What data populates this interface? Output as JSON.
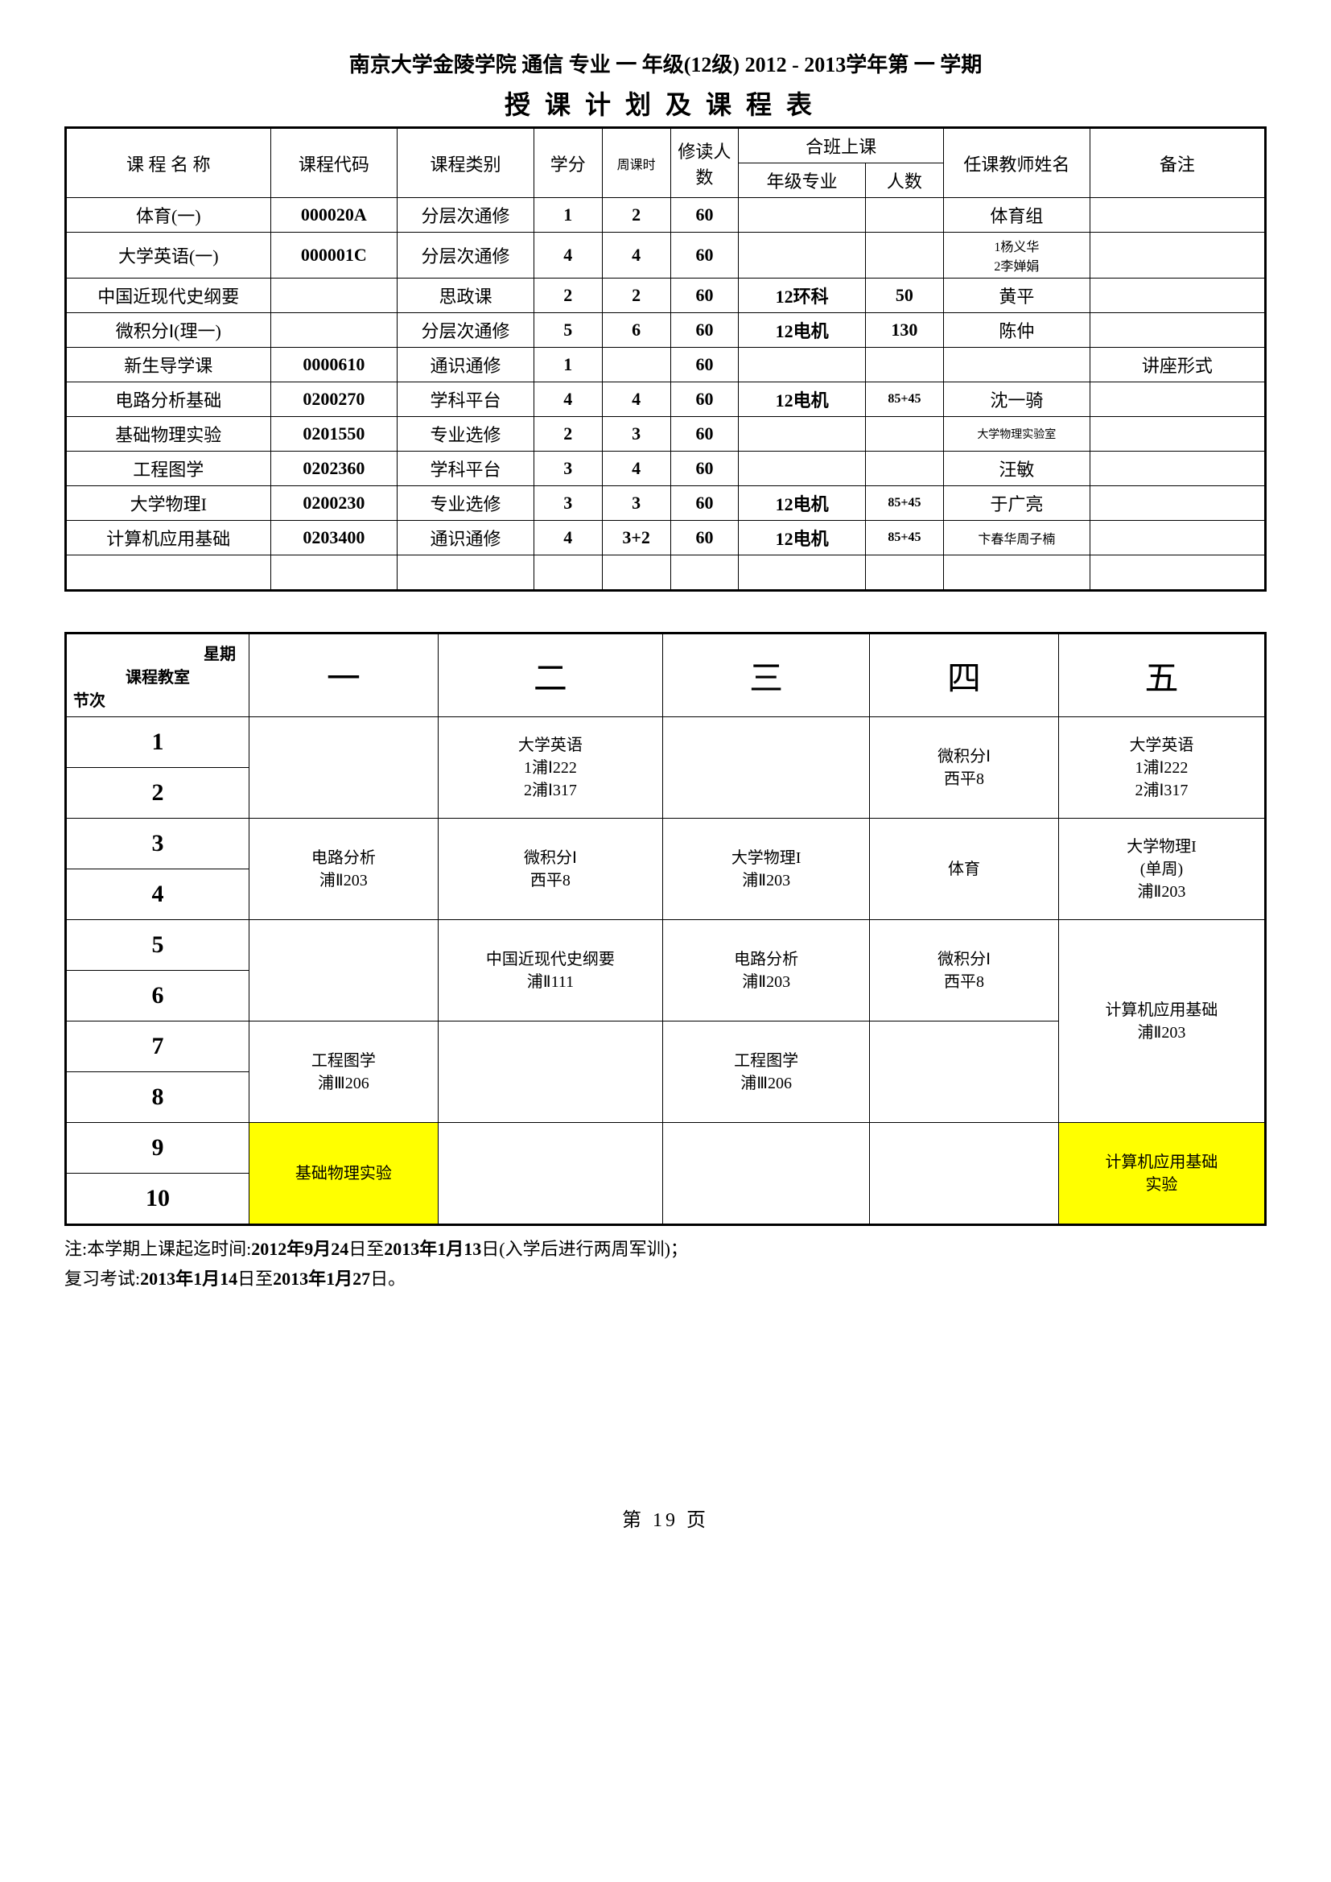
{
  "title": "南京大学金陵学院 通信 专业 一 年级(12级) 2012 - 2013学年第 一 学期",
  "subtitle": "授课计划及课程表",
  "course_headers": {
    "name": "课 程 名 称",
    "code": "课程代码",
    "category": "课程类别",
    "credits": "学分",
    "hours": "周课时",
    "students": "修读人数",
    "combined": "合班上课",
    "grade_major": "年级专业",
    "count": "人数",
    "teacher": "任课教师姓名",
    "remark": "备注"
  },
  "courses": [
    {
      "name": "体育(一)",
      "code": "000020A",
      "category": "分层次通修",
      "credits": "1",
      "hours": "2",
      "students": "60",
      "grade_major": "",
      "count": "",
      "teacher": "体育组",
      "remark": ""
    },
    {
      "name": "大学英语(一)",
      "code": "000001C",
      "category": "分层次通修",
      "credits": "4",
      "hours": "4",
      "students": "60",
      "grade_major": "",
      "count": "",
      "teacher": "1杨义华\n2李婵娟",
      "teacher_small": true,
      "remark": ""
    },
    {
      "name": "中国近现代史纲要",
      "code": "",
      "category": "思政课",
      "credits": "2",
      "hours": "2",
      "students": "60",
      "grade_major": "12环科",
      "count": "50",
      "teacher": "黄平",
      "remark": ""
    },
    {
      "name": "微积分Ⅰ(理一)",
      "code": "",
      "category": "分层次通修",
      "credits": "5",
      "hours": "6",
      "students": "60",
      "grade_major": "12电机",
      "count": "130",
      "teacher": "陈仲",
      "remark": ""
    },
    {
      "name": "新生导学课",
      "code": "0000610",
      "category": "通识通修",
      "credits": "1",
      "hours": "",
      "students": "60",
      "grade_major": "",
      "count": "",
      "teacher": "",
      "remark": "讲座形式"
    },
    {
      "name": "电路分析基础",
      "code": "0200270",
      "category": "学科平台",
      "credits": "4",
      "hours": "4",
      "students": "60",
      "grade_major": "12电机",
      "count": "85+45",
      "count_small": true,
      "teacher": "沈一骑",
      "remark": ""
    },
    {
      "name": "基础物理实验",
      "code": "0201550",
      "category": "专业选修",
      "credits": "2",
      "hours": "3",
      "students": "60",
      "grade_major": "",
      "count": "",
      "teacher": "大学物理实验室",
      "teacher_smaller": true,
      "remark": ""
    },
    {
      "name": "工程图学",
      "code": "0202360",
      "category": "学科平台",
      "credits": "3",
      "hours": "4",
      "students": "60",
      "grade_major": "",
      "count": "",
      "teacher": "汪敏",
      "remark": ""
    },
    {
      "name": "大学物理I",
      "code": "0200230",
      "category": "专业选修",
      "credits": "3",
      "hours": "3",
      "students": "60",
      "grade_major": "12电机",
      "count": "85+45",
      "count_small": true,
      "teacher": "于广亮",
      "remark": ""
    },
    {
      "name": "计算机应用基础",
      "code": "0203400",
      "category": "通识通修",
      "credits": "4",
      "hours": "3+2",
      "students": "60",
      "grade_major": "12电机",
      "count": "85+45",
      "count_small": true,
      "teacher": "卞春华周子楠",
      "teacher_small": true,
      "remark": ""
    }
  ],
  "corner_labels": {
    "weekday": "星期",
    "classroom": "课程教室",
    "period": "节次"
  },
  "days": [
    "一",
    "二",
    "三",
    "四",
    "五"
  ],
  "periods": [
    "1",
    "2",
    "3",
    "4",
    "5",
    "6",
    "7",
    "8",
    "9",
    "10"
  ],
  "schedule": {
    "p12": {
      "d1": "",
      "d2": "大学英语\n1浦Ⅰ222\n2浦Ⅰ317",
      "d3": "",
      "d4": "微积分Ⅰ\n西平8",
      "d5": "大学英语\n1浦Ⅰ222\n2浦Ⅰ317"
    },
    "p34": {
      "d1": "电路分析\n浦Ⅱ203",
      "d2": "微积分Ⅰ\n西平8",
      "d3": "大学物理I\n浦Ⅱ203",
      "d4": "体育",
      "d5": "大学物理I\n(单周)\n浦Ⅱ203"
    },
    "p56": {
      "d1": "",
      "d2": "中国近现代史纲要\n浦Ⅱ111",
      "d3": "电路分析\n浦Ⅱ203",
      "d4": "微积分Ⅰ\n西平8",
      "d5": "计算机应用基础\n浦Ⅱ203",
      "d5_span": 4
    },
    "p78": {
      "d1": "工程图学\n浦Ⅲ206",
      "d2": "",
      "d3": "工程图学\n浦Ⅲ206",
      "d4": ""
    },
    "p910": {
      "d1": "基础物理实验",
      "d1_hl": true,
      "d2": "",
      "d3": "",
      "d4": "",
      "d5": "计算机应用基础\n实验",
      "d5_hl": true
    }
  },
  "notes": {
    "line1_prefix": "注:本学期上课起迄时间:",
    "line1_bold": "2012年9月24",
    "line1_mid": "日至",
    "line1_bold2": "2013年1月13",
    "line1_suffix": "日(入学后进行两周军训)；",
    "line2_prefix": "复习考试:",
    "line2_bold": "2013年1月14",
    "line2_mid": "日至",
    "line2_bold2": "2013年1月27",
    "line2_suffix": "日。"
  },
  "page_num": "第 19 页"
}
